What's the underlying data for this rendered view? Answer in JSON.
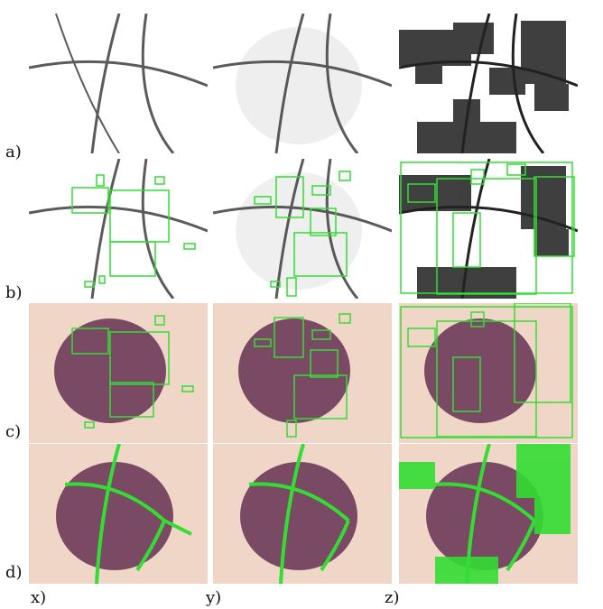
{
  "rows": [
    {
      "label": "a)",
      "kind": "heatmap",
      "boxes": false
    },
    {
      "label": "b)",
      "kind": "heatmap",
      "boxes": true
    },
    {
      "label": "c)",
      "kind": "lesion",
      "boxes": true
    },
    {
      "label": "d)",
      "kind": "lesion",
      "boxes": false,
      "overlay": true
    }
  ],
  "columns": [
    {
      "label": "x)"
    },
    {
      "label": "y)"
    },
    {
      "label": "z)"
    }
  ],
  "colors": {
    "box_green": "#33dd33",
    "stroke_dark": "#222222",
    "skin": "#efd6c6",
    "lesion": "#7a4a64",
    "noise": "#1a1a1a"
  }
}
